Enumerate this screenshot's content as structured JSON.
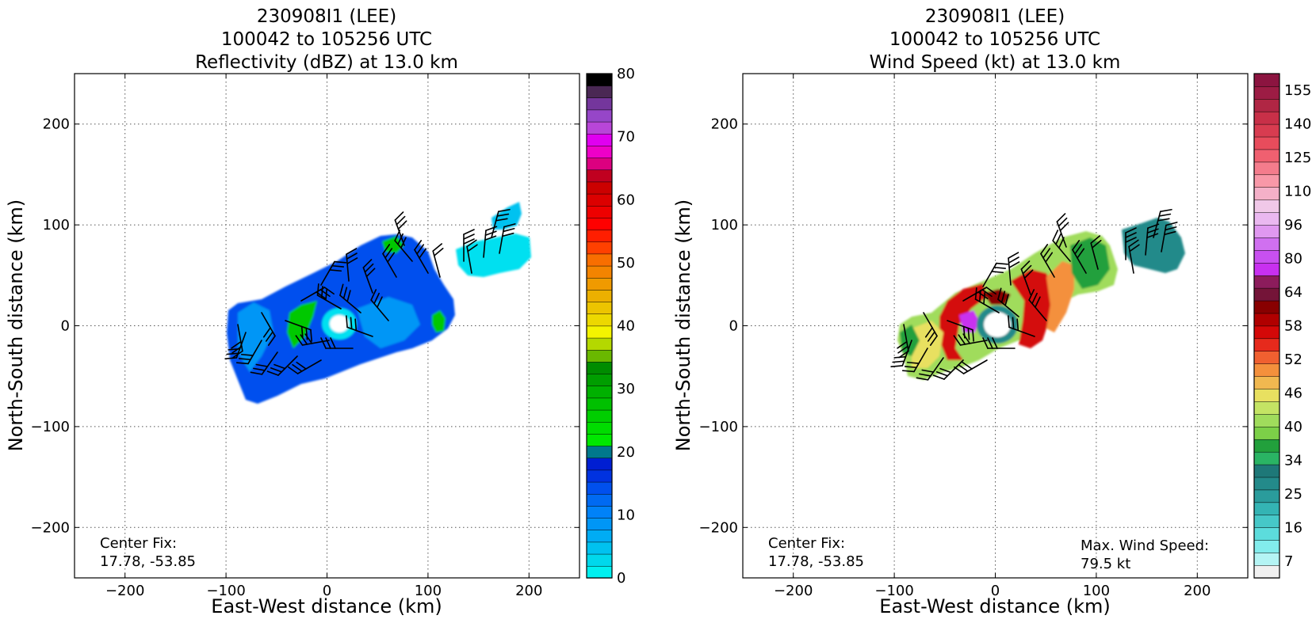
{
  "chart_data": [
    {
      "type": "heatmap",
      "title_lines": [
        "230908I1 (LEE)",
        "100042 to 105256 UTC",
        "Reflectivity (dBZ) at 13.0 km"
      ],
      "xlabel": "East-West distance (km)",
      "ylabel": "North-South distance (km)",
      "xlim": [
        -250,
        250
      ],
      "ylim": [
        -250,
        250
      ],
      "xticks": [
        -200,
        -100,
        0,
        100,
        200
      ],
      "yticks": [
        -200,
        -100,
        0,
        100,
        200
      ],
      "grid": true,
      "annotations": [
        {
          "text": "Center Fix:",
          "position": "bottom-left"
        },
        {
          "text": "17.78, -53.85",
          "position": "bottom-left"
        }
      ],
      "colorbar": {
        "ticks": [
          0,
          10,
          20,
          30,
          40,
          50,
          60,
          70,
          80
        ],
        "range": [
          0,
          80
        ],
        "colors": [
          "#00f0f0",
          "#00d8ec",
          "#00c2f0",
          "#00acf4",
          "#0096f6",
          "#0082f8",
          "#006af2",
          "#0050ee",
          "#0032e0",
          "#001ed2",
          "#00788c",
          "#00e800",
          "#00dc00",
          "#00ce00",
          "#00c000",
          "#00b000",
          "#009e00",
          "#008c00",
          "#6ab800",
          "#b4d800",
          "#f4f400",
          "#ecd800",
          "#ecc400",
          "#ecb000",
          "#f09a00",
          "#f48400",
          "#f86e00",
          "#ff4000",
          "#ff1e00",
          "#ff0000",
          "#ee0000",
          "#dc0000",
          "#cc0000",
          "#c00020",
          "#dc0080",
          "#ee00c8",
          "#e000f0",
          "#b846d8",
          "#9646c8",
          "#74369c",
          "#4a2854",
          "#000000"
        ]
      },
      "field_colors": {
        "low": "#0050ee",
        "mid": "#0096f6",
        "cyan": "#00e0f0",
        "green": "#00c800"
      },
      "max_label": ""
    },
    {
      "type": "heatmap",
      "title_lines": [
        "230908I1 (LEE)",
        "100042 to 105256 UTC",
        "Wind Speed (kt) at 13.0 km"
      ],
      "xlabel": "East-West distance (km)",
      "ylabel": "North-South distance (km)",
      "xlim": [
        -250,
        250
      ],
      "ylim": [
        -250,
        250
      ],
      "xticks": [
        -200,
        -100,
        0,
        100,
        200
      ],
      "yticks": [
        -200,
        -100,
        0,
        100,
        200
      ],
      "grid": true,
      "annotations": [
        {
          "text": "Center Fix:",
          "position": "bottom-left"
        },
        {
          "text": "17.78, -53.85",
          "position": "bottom-left"
        },
        {
          "text": "Max. Wind Speed:",
          "position": "bottom-right"
        },
        {
          "text": "79.5 kt",
          "position": "bottom-right"
        }
      ],
      "colorbar": {
        "ticks": [
          7,
          16,
          25,
          34,
          40,
          46,
          52,
          58,
          64,
          80,
          96,
          110,
          125,
          140,
          155
        ],
        "colors": [
          "#f0f0f0",
          "#b4f4f4",
          "#82ecec",
          "#5cdcdc",
          "#46c8c8",
          "#34b4b4",
          "#2a9c9c",
          "#238a8a",
          "#1e7878",
          "#2ab464",
          "#22a03c",
          "#7cd048",
          "#a0dc5c",
          "#c4e464",
          "#e8e060",
          "#f0b850",
          "#f4903c",
          "#f06030",
          "#e62a1c",
          "#d40808",
          "#b00000",
          "#880000",
          "#741438",
          "#8c1c5c",
          "#c830f0",
          "#c850f0",
          "#d070f0",
          "#e098f0",
          "#eab8f0",
          "#f0c8e8",
          "#f4b0c8",
          "#f898a8",
          "#f47c8c",
          "#f06070",
          "#e84c5c",
          "#d83c50",
          "#c83048",
          "#b02644",
          "#9c1c44",
          "#8c1440"
        ]
      },
      "max_label": "79.5 kt"
    }
  ]
}
